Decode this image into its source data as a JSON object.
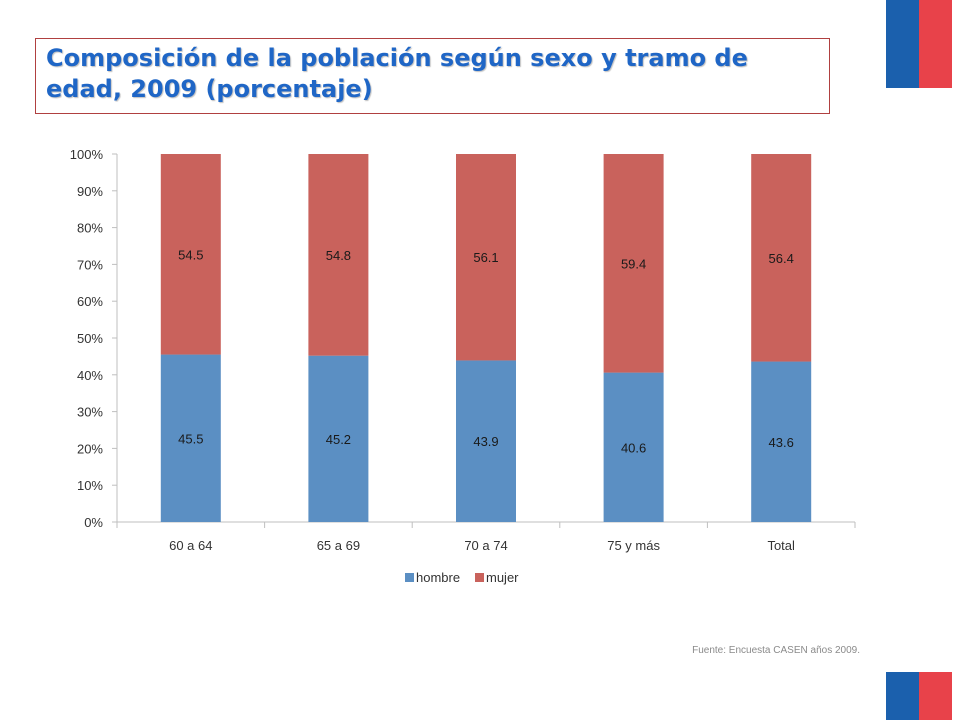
{
  "title": "Composición de la población según sexo y tramo de edad, 2009 (porcentaje)",
  "source": "Fuente: Encuesta CASEN años 2009.",
  "colors": {
    "flag_blue": "#1b60ad",
    "flag_red": "#e8424a",
    "title": "#1f66c6",
    "hombre": "#5b8fc3",
    "mujer": "#c9625c"
  },
  "chart_data": {
    "type": "bar",
    "stacked": true,
    "categories": [
      "60 a 64",
      "65 a 69",
      "70 a 74",
      "75 y más",
      "Total"
    ],
    "series": [
      {
        "name": "hombre",
        "values": [
          45.5,
          45.2,
          43.9,
          40.6,
          43.6
        ]
      },
      {
        "name": "mujer",
        "values": [
          54.5,
          54.8,
          56.1,
          59.4,
          56.4
        ]
      }
    ],
    "y_ticks": [
      "0%",
      "10%",
      "20%",
      "30%",
      "40%",
      "50%",
      "60%",
      "70%",
      "80%",
      "90%",
      "100%"
    ],
    "ylim": [
      0,
      100
    ],
    "legend": "bottom",
    "grid": false
  }
}
